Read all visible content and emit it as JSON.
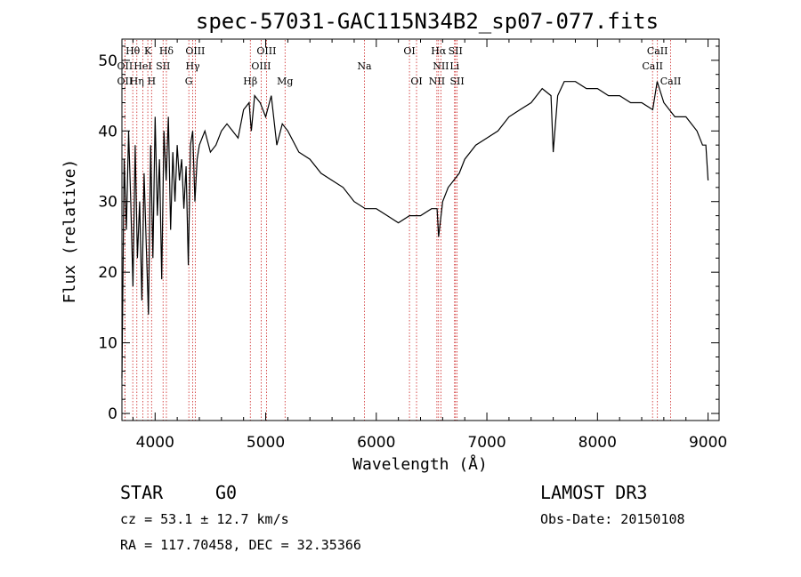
{
  "chart_data": {
    "type": "line",
    "title": "spec-57031-GAC115N34B2_sp07-077.fits",
    "xlabel": "Wavelength (Å)",
    "ylabel": "Flux (relative)",
    "xlim": [
      3700,
      9100
    ],
    "ylim": [
      -1,
      53
    ],
    "xticks": [
      4000,
      5000,
      6000,
      7000,
      8000,
      9000
    ],
    "yticks": [
      0,
      10,
      20,
      30,
      40,
      50
    ],
    "series": [
      {
        "name": "flux",
        "x": [
          3700,
          3720,
          3740,
          3760,
          3780,
          3800,
          3820,
          3840,
          3860,
          3880,
          3900,
          3920,
          3940,
          3960,
          3980,
          4000,
          4020,
          4040,
          4060,
          4080,
          4100,
          4120,
          4140,
          4160,
          4180,
          4200,
          4220,
          4240,
          4260,
          4280,
          4300,
          4320,
          4340,
          4360,
          4380,
          4400,
          4450,
          4500,
          4550,
          4600,
          4650,
          4700,
          4750,
          4800,
          4850,
          4870,
          4900,
          4950,
          5000,
          5050,
          5100,
          5150,
          5200,
          5300,
          5400,
          5500,
          5600,
          5700,
          5800,
          5900,
          6000,
          6100,
          6200,
          6300,
          6400,
          6500,
          6550,
          6563,
          6600,
          6650,
          6700,
          6750,
          6800,
          6900,
          7000,
          7100,
          7200,
          7300,
          7400,
          7500,
          7580,
          7600,
          7640,
          7700,
          7800,
          7900,
          8000,
          8100,
          8200,
          8300,
          8400,
          8500,
          8540,
          8600,
          8700,
          8800,
          8900,
          8950,
          8980,
          9000
        ],
        "values": [
          5,
          36,
          26,
          40,
          30,
          18,
          38,
          22,
          30,
          16,
          34,
          24,
          14,
          38,
          22,
          42,
          28,
          36,
          19,
          40,
          33,
          42,
          26,
          37,
          30,
          38,
          33,
          36,
          29,
          35,
          21,
          38,
          40,
          30,
          36,
          38,
          40,
          37,
          38,
          40,
          41,
          40,
          39,
          43,
          44,
          40,
          45,
          44,
          42,
          45,
          38,
          41,
          40,
          37,
          36,
          34,
          33,
          32,
          30,
          29,
          29,
          28,
          27,
          28,
          28,
          29,
          29,
          25,
          30,
          32,
          33,
          34,
          36,
          38,
          39,
          40,
          42,
          43,
          44,
          46,
          45,
          37,
          45,
          47,
          47,
          46,
          46,
          45,
          45,
          44,
          44,
          43,
          47,
          44,
          42,
          42,
          40,
          38,
          38,
          33
        ]
      }
    ],
    "line_markers": [
      {
        "name": "Hθ",
        "x": 3798,
        "row": 0
      },
      {
        "name": "K",
        "x": 3934,
        "row": 0
      },
      {
        "name": "Hδ",
        "x": 4102,
        "row": 0
      },
      {
        "name": "OIII",
        "x": 4363,
        "row": 0
      },
      {
        "name": "OIII",
        "x": 5007,
        "row": 0
      },
      {
        "name": "OI",
        "x": 6300,
        "row": 0
      },
      {
        "name": "Hα",
        "x": 6563,
        "row": 0
      },
      {
        "name": "SII",
        "x": 6716,
        "row": 0
      },
      {
        "name": "CaII",
        "x": 8542,
        "row": 0
      },
      {
        "name": "OII",
        "x": 3727,
        "row": 1
      },
      {
        "name": "HeI",
        "x": 3889,
        "row": 1
      },
      {
        "name": "SII",
        "x": 4072,
        "row": 1
      },
      {
        "name": "Hγ",
        "x": 4340,
        "row": 1
      },
      {
        "name": "OIII",
        "x": 4959,
        "row": 1
      },
      {
        "name": "Na",
        "x": 5893,
        "row": 1
      },
      {
        "name": "NII",
        "x": 6584,
        "row": 1
      },
      {
        "name": "Li",
        "x": 6708,
        "row": 1
      },
      {
        "name": "CaII",
        "x": 8498,
        "row": 1
      },
      {
        "name": "OII",
        "x": 3727,
        "row": 2
      },
      {
        "name": "Hη",
        "x": 3835,
        "row": 2
      },
      {
        "name": "H",
        "x": 3968,
        "row": 2
      },
      {
        "name": "G",
        "x": 4305,
        "row": 2
      },
      {
        "name": "Hβ",
        "x": 4861,
        "row": 2
      },
      {
        "name": "Mg",
        "x": 5175,
        "row": 2
      },
      {
        "name": "OI",
        "x": 6364,
        "row": 2
      },
      {
        "name": "NII",
        "x": 6548,
        "row": 2
      },
      {
        "name": "SII",
        "x": 6731,
        "row": 2
      },
      {
        "name": "CaII",
        "x": 8662,
        "row": 2
      }
    ]
  },
  "info": {
    "class": "STAR",
    "subclass": "G0",
    "survey": "LAMOST DR3",
    "cz": "cz = 53.1 ± 12.7 km/s",
    "obs_date": "Obs-Date: 20150108",
    "radec": "RA = 117.70458, DEC =  32.35366"
  },
  "colors": {
    "marker": "#cc2222",
    "spectrum": "#000000",
    "axes": "#000000"
  }
}
